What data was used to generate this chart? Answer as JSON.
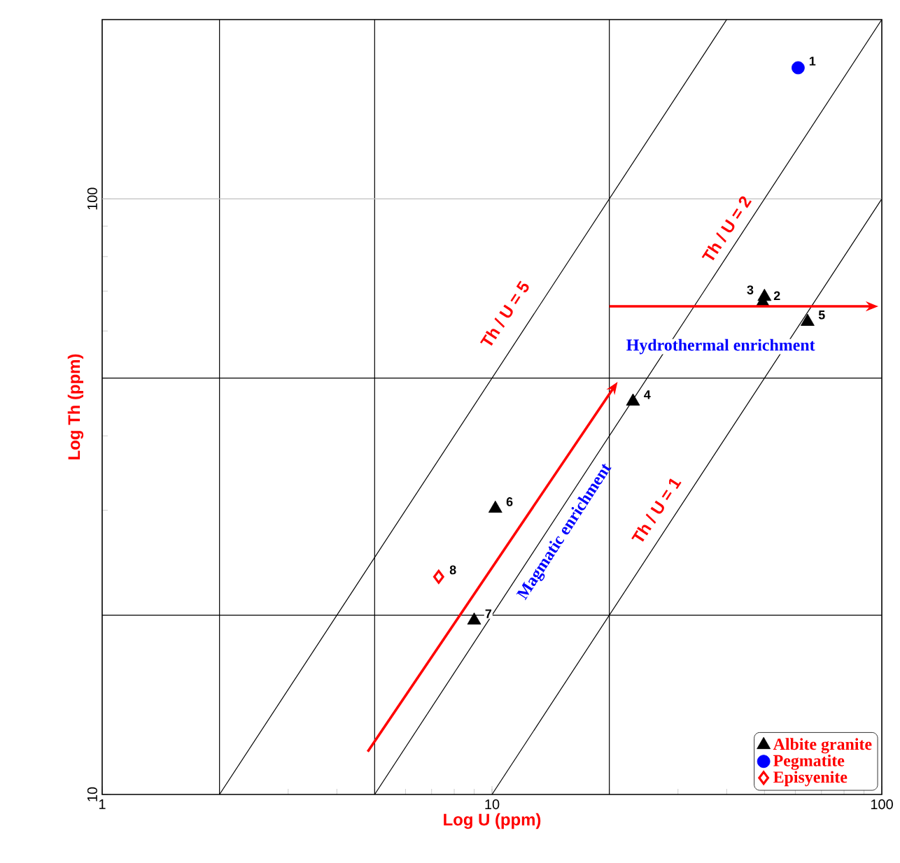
{
  "chart_data": {
    "type": "scatter",
    "xlabel": "Log U (ppm)",
    "ylabel": "Log Th (ppm)",
    "log": "xy",
    "xlim": [
      1,
      100
    ],
    "ylim": [
      10,
      200
    ],
    "xticks": [
      1,
      10,
      100
    ],
    "yticks": [
      10,
      100
    ],
    "legend": "bottom right",
    "series": [
      {
        "type": "line",
        "color": "#000000",
        "x": [
          2,
          40
        ],
        "values": [
          10,
          200
        ]
      },
      {
        "type": "line",
        "color": "#000000",
        "x": [
          5,
          100
        ],
        "values": [
          10,
          200
        ]
      },
      {
        "type": "line",
        "color": "#000000",
        "x": [
          10,
          100
        ],
        "values": [
          10,
          100
        ]
      },
      {
        "name": "Albite granite",
        "marker": "triangle",
        "color": "#000000",
        "x": [
          49.5,
          50,
          23,
          64.5,
          10.2,
          9.0
        ],
        "values": [
          67,
          68.5,
          45.7,
          62.2,
          30.2,
          19.6
        ]
      },
      {
        "name": "Pegmatite",
        "marker": "circle",
        "color": "#0000ff",
        "x": [
          61
        ],
        "values": [
          166
        ]
      },
      {
        "name": "Episyenite",
        "marker": "diamond",
        "color": "#ff0000",
        "x": [
          7.3
        ],
        "values": [
          23.2
        ]
      }
    ],
    "ref_lines": [
      {
        "axis": "x",
        "value": 2,
        "color": "#000000"
      },
      {
        "axis": "x",
        "value": 5,
        "color": "#000000"
      },
      {
        "axis": "x",
        "value": 20,
        "color": "#000000"
      },
      {
        "axis": "y",
        "value": 20,
        "color": "#000000"
      },
      {
        "axis": "y",
        "value": 50,
        "color": "#000000"
      },
      {
        "axis": "y",
        "value": 100,
        "color": "#c0c0c0"
      }
    ],
    "annotations": [
      "Th / U = 5",
      "Th / U = 2",
      "Th / U = 1",
      "Hydrothermal enrichment",
      "Magmatic enrichment",
      {
        "text": "2",
        "x": 49.5,
        "y": 67
      },
      {
        "text": "3",
        "x": 50,
        "y": 68.5
      },
      {
        "text": "4",
        "x": 23,
        "y": 45.7
      },
      {
        "text": "5",
        "x": 64.5,
        "y": 62.2
      },
      {
        "text": "6",
        "x": 10.2,
        "y": 30.2
      },
      {
        "text": "7",
        "x": 9.0,
        "y": 19.6
      },
      {
        "text": "1",
        "x": 61,
        "y": 166
      },
      {
        "text": "8",
        "x": 7.3,
        "y": 23.2
      }
    ]
  }
}
